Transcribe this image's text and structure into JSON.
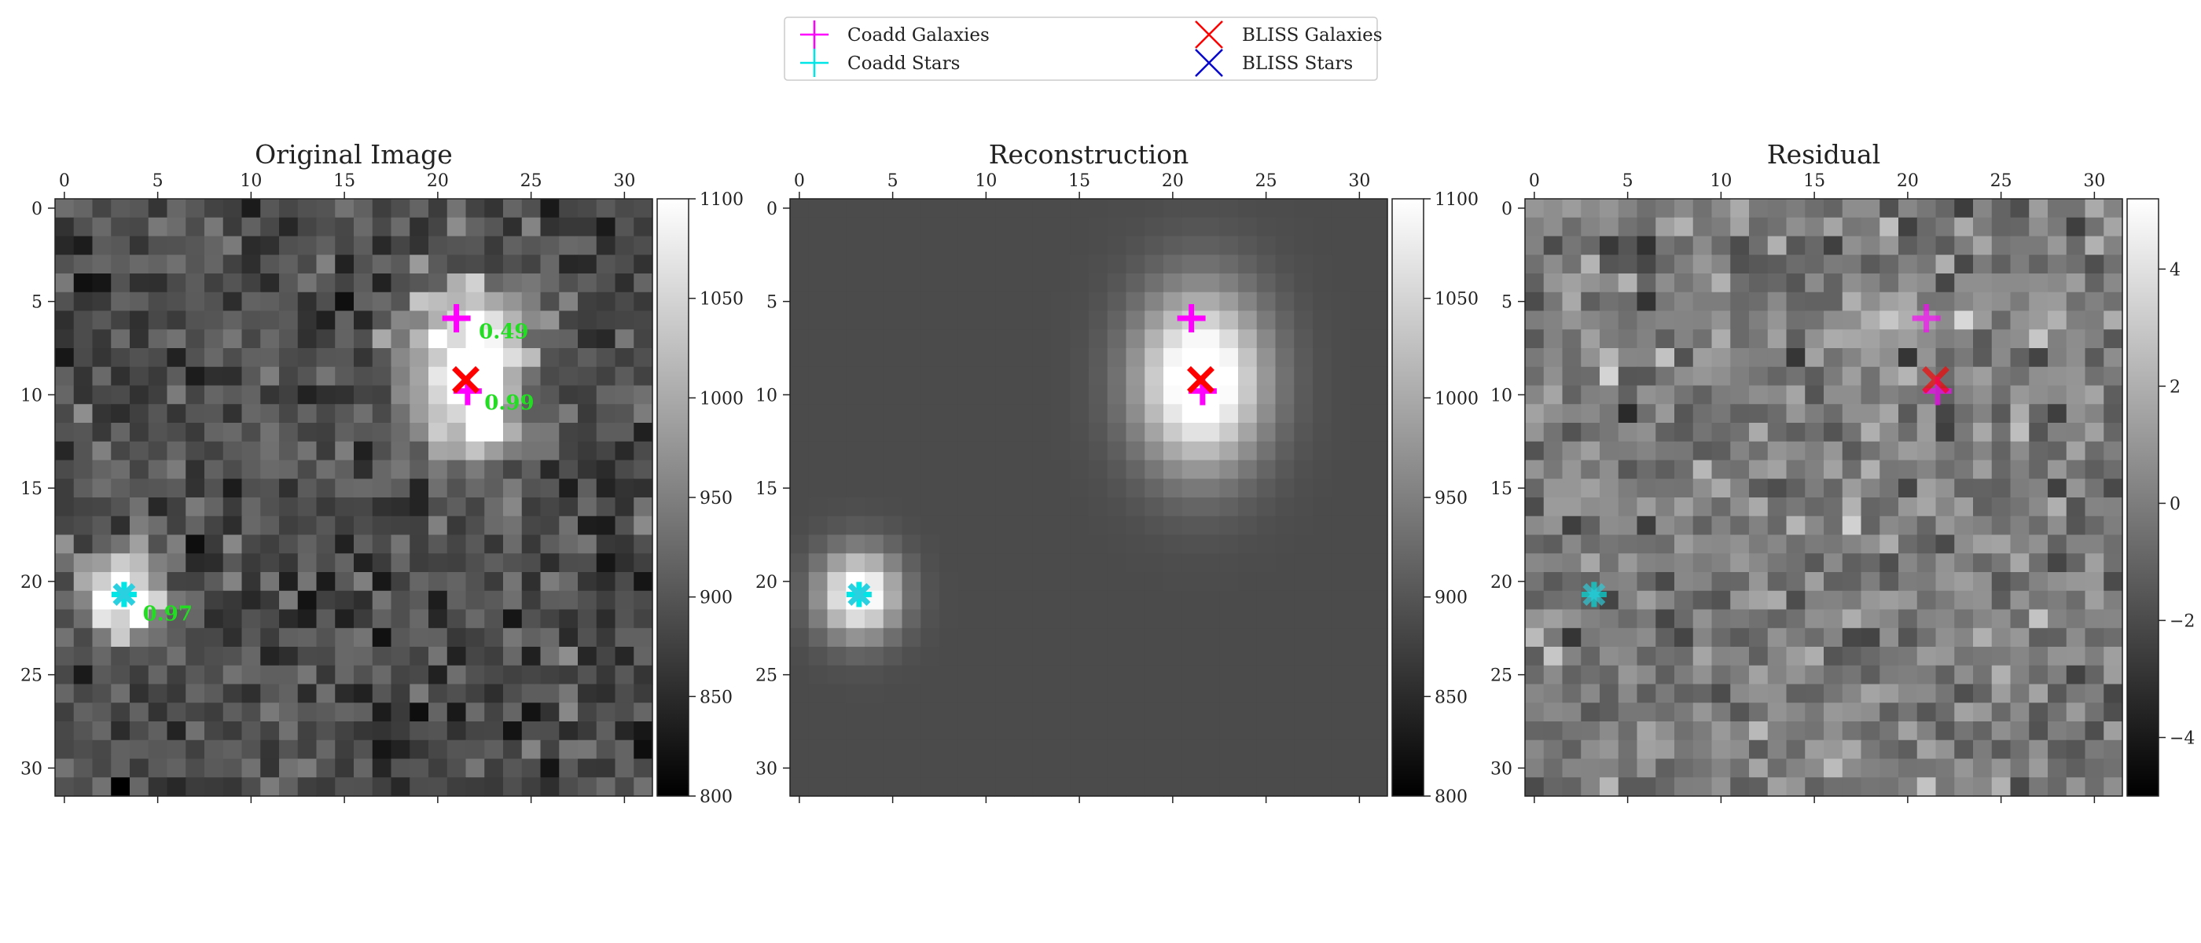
{
  "figure": {
    "legend": {
      "placement": "top-center",
      "entries": [
        {
          "label": "Coadd Galaxies",
          "marker": "plus",
          "color": "#ff00ff"
        },
        {
          "label": "Coadd Stars",
          "marker": "plus",
          "color": "#00e5e5"
        },
        {
          "label": "BLISS Galaxies",
          "marker": "x",
          "color": "#ff0000"
        },
        {
          "label": "BLISS Stars",
          "marker": "x",
          "color": "#0000cc"
        }
      ]
    }
  },
  "chart_data": [
    {
      "type": "heatmap",
      "title": "Original Image",
      "colormap": "gray",
      "xlim": [
        -0.5,
        31.5
      ],
      "ylim": [
        31.5,
        -0.5
      ],
      "xticks": [
        0,
        5,
        10,
        15,
        20,
        25,
        30
      ],
      "yticks": [
        0,
        5,
        10,
        15,
        20,
        25,
        30
      ],
      "colorbar": {
        "range": [
          800,
          1100
        ],
        "ticks": [
          800,
          850,
          900,
          950,
          1000,
          1050,
          1100
        ]
      },
      "sources": [
        {
          "kind": "galaxy",
          "x": 21.8,
          "y": 9.4,
          "peak": 280,
          "sx": 1.9,
          "sy": 2.6
        },
        {
          "kind": "galaxy",
          "x": 21.0,
          "y": 5.8,
          "peak": 90,
          "sx": 2.5,
          "sy": 1.5
        },
        {
          "kind": "star",
          "x": 3.3,
          "y": 20.8,
          "peak": 260,
          "sx": 1.5,
          "sy": 1.6
        }
      ],
      "background": 890,
      "noise": 30,
      "coadd_galaxies": [
        [
          21.0,
          5.9
        ],
        [
          21.6,
          9.8
        ]
      ],
      "coadd_stars": [
        [
          3.2,
          20.7
        ]
      ],
      "bliss_galaxies": [
        [
          21.5,
          9.2
        ]
      ],
      "bliss_stars": [
        [
          3.2,
          20.7
        ]
      ],
      "annotations": [
        {
          "text": "0.49",
          "x": 22.2,
          "y": 6.6
        },
        {
          "text": "0.99",
          "x": 22.5,
          "y": 10.4
        },
        {
          "text": "0.97",
          "x": 4.2,
          "y": 21.7
        }
      ]
    },
    {
      "type": "heatmap",
      "title": "Reconstruction",
      "colormap": "gray",
      "xlim": [
        -0.5,
        31.5
      ],
      "ylim": [
        31.5,
        -0.5
      ],
      "xticks": [
        0,
        5,
        10,
        15,
        20,
        25,
        30
      ],
      "yticks": [
        0,
        5,
        10,
        15,
        20,
        25,
        30
      ],
      "colorbar": {
        "range": [
          800,
          1100
        ],
        "ticks": [
          800,
          850,
          900,
          950,
          1000,
          1050,
          1100
        ]
      },
      "sources": [
        {
          "kind": "galaxy",
          "x": 21.5,
          "y": 9.2,
          "peak": 260,
          "sx": 2.4,
          "sy": 3.3
        },
        {
          "kind": "star",
          "x": 3.2,
          "y": 20.7,
          "peak": 240,
          "sx": 1.5,
          "sy": 1.6
        }
      ],
      "background": 888,
      "noise": 0,
      "coadd_galaxies": [
        [
          21.0,
          5.9
        ],
        [
          21.6,
          9.8
        ]
      ],
      "coadd_stars": [
        [
          3.2,
          20.7
        ]
      ],
      "bliss_galaxies": [
        [
          21.5,
          9.2
        ]
      ],
      "bliss_stars": [
        [
          3.2,
          20.7
        ]
      ],
      "annotations": []
    },
    {
      "type": "heatmap",
      "title": "Residual",
      "colormap": "gray",
      "xlim": [
        -0.5,
        31.5
      ],
      "ylim": [
        31.5,
        -0.5
      ],
      "xticks": [
        0,
        5,
        10,
        15,
        20,
        25,
        30
      ],
      "yticks": [
        0,
        5,
        10,
        15,
        20,
        25,
        30
      ],
      "colorbar": {
        "range": [
          -5,
          5.2
        ],
        "ticks": [
          -4,
          -2,
          0,
          2,
          4
        ]
      },
      "sources": [
        {
          "kind": "galaxy",
          "x": 19.5,
          "y": 6.0,
          "peak": 2.2,
          "sx": 2.0,
          "sy": 0.8
        }
      ],
      "background": 0,
      "noise": 1.1,
      "coadd_galaxies": [
        [
          21.0,
          5.9
        ],
        [
          21.6,
          9.8
        ]
      ],
      "coadd_stars": [
        [
          3.2,
          20.7
        ]
      ],
      "bliss_galaxies": [
        [
          21.5,
          9.2
        ]
      ],
      "bliss_stars": [
        [
          3.2,
          20.7
        ]
      ],
      "marker_alpha": 0.65,
      "annotations": []
    }
  ]
}
